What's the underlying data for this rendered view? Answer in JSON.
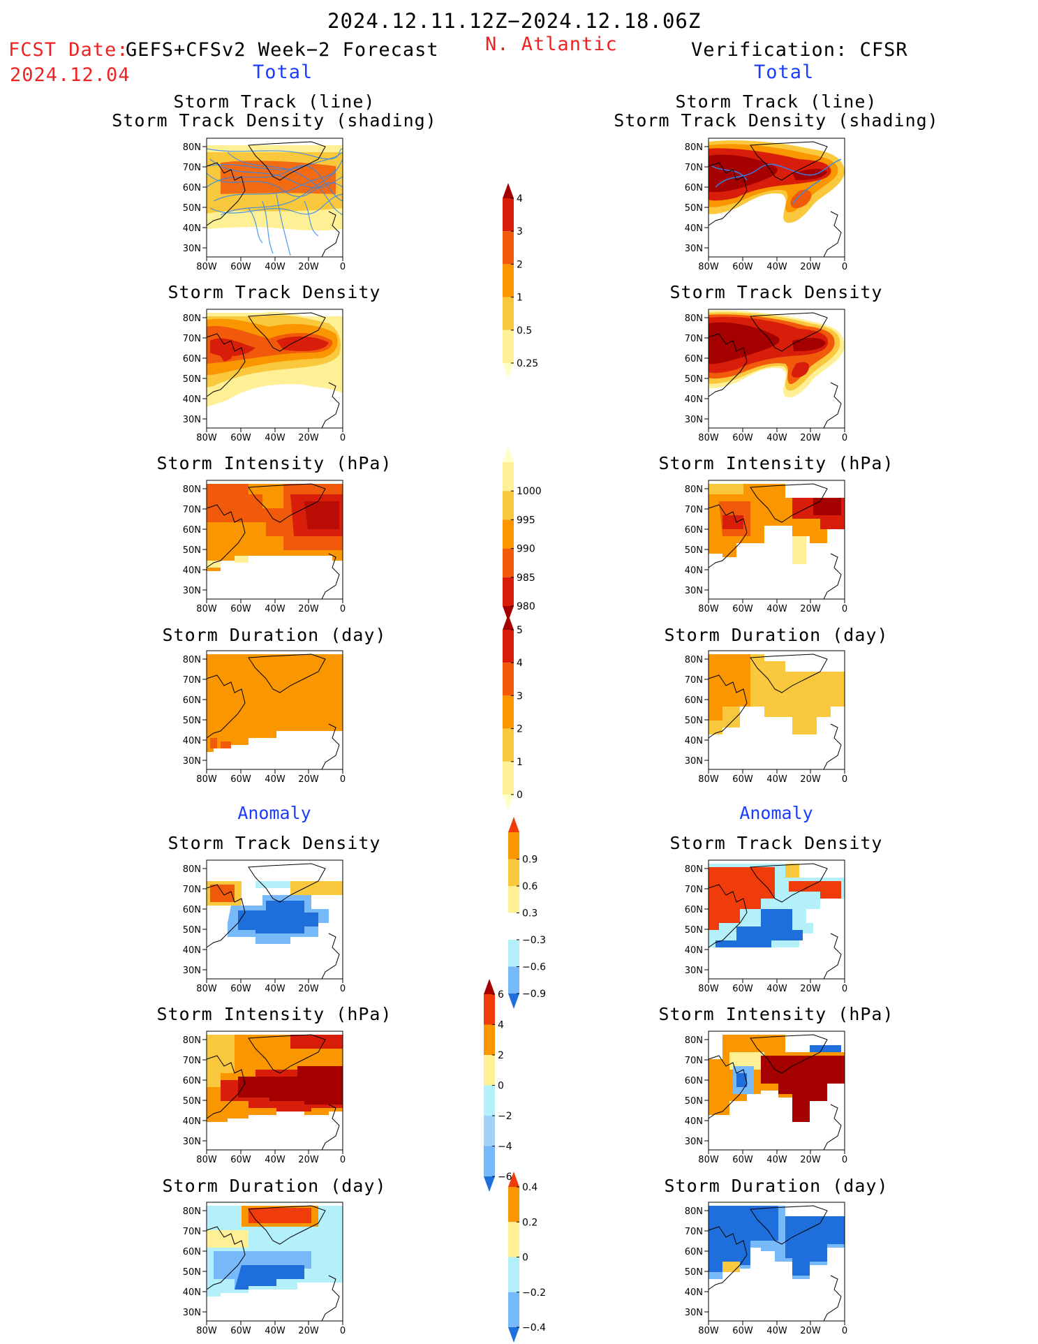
{
  "header": {
    "date_range": "2024.12.11.12Z−2024.12.18.06Z",
    "fcst_label": "FCST Date:",
    "fcst_model": "GEFS+CFSv2 Week−2 Forecast",
    "fcst_date": "2024.12.04",
    "region": "N. Atlantic",
    "verification": "Verification: CFSR",
    "left_total": "Total",
    "right_total": "Total",
    "left_anomaly": "Anomaly",
    "right_anomaly": "Anomaly"
  },
  "panel_titles": {
    "track_line": "Storm Track (line)",
    "track_shading": "Storm Track Density (shading)",
    "density": "Storm Track Density",
    "intensity": "Storm Intensity (hPa)",
    "duration": "Storm Duration (day)"
  },
  "axes": {
    "y_ticks": [
      "80N",
      "70N",
      "60N",
      "50N",
      "40N",
      "30N"
    ],
    "x_ticks": [
      "80W",
      "60W",
      "40W",
      "20W",
      "0"
    ]
  },
  "colorbars": [
    {
      "name": "track-density-total",
      "labels": [
        "4",
        "3",
        "2",
        "1",
        "0.5",
        "0.25"
      ],
      "colors": [
        "#a50000",
        "#d81e0a",
        "#f05a0a",
        "#fa9600",
        "#fac83c",
        "#fff096",
        "#ffffc8"
      ]
    },
    {
      "name": "intensity-total",
      "labels": [
        "1000",
        "995",
        "990",
        "985",
        "980"
      ],
      "colors": [
        "#ffffc8",
        "#fff096",
        "#fac83c",
        "#fa9600",
        "#f05a0a",
        "#d81e0a",
        "#a50000"
      ]
    },
    {
      "name": "duration-total",
      "labels": [
        "5",
        "4",
        "3",
        "2",
        "1",
        "0"
      ],
      "colors": [
        "#a50000",
        "#d81e0a",
        "#f05a0a",
        "#fa9600",
        "#fac83c",
        "#fff096",
        "#ffffc8"
      ]
    },
    {
      "name": "density-anomaly",
      "labels": [
        "0.9",
        "0.6",
        "0.3",
        "−0.3",
        "−0.6",
        "−0.9"
      ],
      "colors": [
        "#f03c0a",
        "#fa9600",
        "#fac83c",
        "#fff096",
        "#ffffff",
        "#b4f0fa",
        "#78b9fa",
        "#1e6edc"
      ]
    },
    {
      "name": "intensity-anomaly",
      "labels": [
        "6",
        "4",
        "2",
        "0",
        "−2",
        "−4",
        "−6"
      ],
      "colors": [
        "#a50000",
        "#f03c0a",
        "#fa9600",
        "#fff096",
        "#b4f0fa",
        "#a0d2fa",
        "#78b9fa",
        "#1e6edc"
      ]
    },
    {
      "name": "duration-anomaly",
      "labels": [
        "0.4",
        "0.2",
        "0",
        "−0.2",
        "−0.4"
      ],
      "colors": [
        "#f03c0a",
        "#fa9600",
        "#fff096",
        "#b4f0fa",
        "#78b9fa",
        "#1e6edc"
      ]
    }
  ]
}
